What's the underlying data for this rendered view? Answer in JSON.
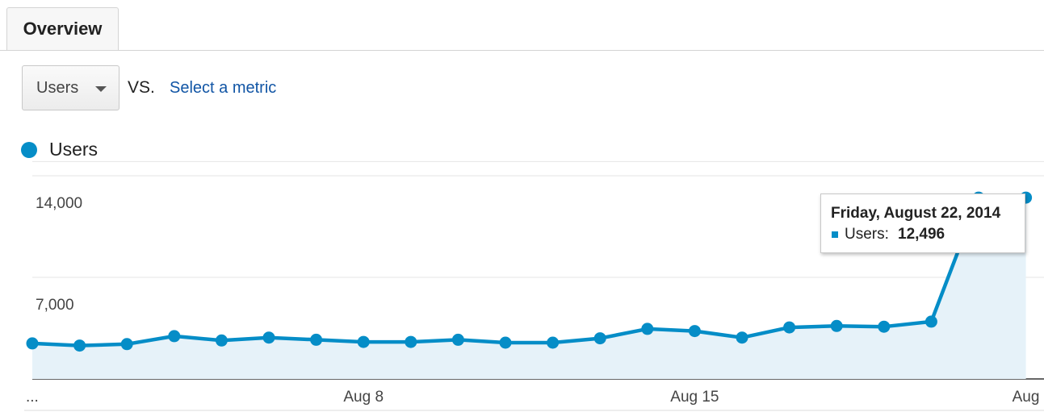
{
  "tabs": [
    {
      "label": "Overview"
    }
  ],
  "metric_selector": {
    "selected": "Users",
    "vs_label": "VS.",
    "compare_link": "Select a metric"
  },
  "legend": {
    "series_label": "Users"
  },
  "colors": {
    "series": "#058dc7",
    "area_fill": "#e6f2f9",
    "link": "#1155a5"
  },
  "icons": {
    "dropdown": "caret-down-icon",
    "legend_marker": "dot"
  },
  "tooltip": {
    "date": "Friday, August 22, 2014",
    "series_name": "Users:",
    "value": "12,496"
  },
  "chart_data": {
    "type": "area",
    "title": "",
    "xlabel": "",
    "ylabel": "",
    "ylim": [
      0,
      14000
    ],
    "y_ticks": [
      "14,000",
      "7,000"
    ],
    "x_tick_labels": [
      "...",
      "Aug 8",
      "Aug 15",
      "Aug"
    ],
    "grid": true,
    "legend": "top-left",
    "x": [
      "2014-08-01",
      "2014-08-02",
      "2014-08-03",
      "2014-08-04",
      "2014-08-05",
      "2014-08-06",
      "2014-08-07",
      "2014-08-08",
      "2014-08-09",
      "2014-08-10",
      "2014-08-11",
      "2014-08-12",
      "2014-08-13",
      "2014-08-14",
      "2014-08-15",
      "2014-08-16",
      "2014-08-17",
      "2014-08-18",
      "2014-08-19",
      "2014-08-20",
      "2014-08-21",
      "2014-08-22"
    ],
    "series": [
      {
        "name": "Users",
        "values": [
          2450,
          2300,
          2400,
          2950,
          2650,
          2850,
          2700,
          2550,
          2550,
          2700,
          2500,
          2500,
          2800,
          3450,
          3300,
          2850,
          3550,
          3650,
          3600,
          3950,
          12496,
          12496
        ]
      }
    ]
  }
}
